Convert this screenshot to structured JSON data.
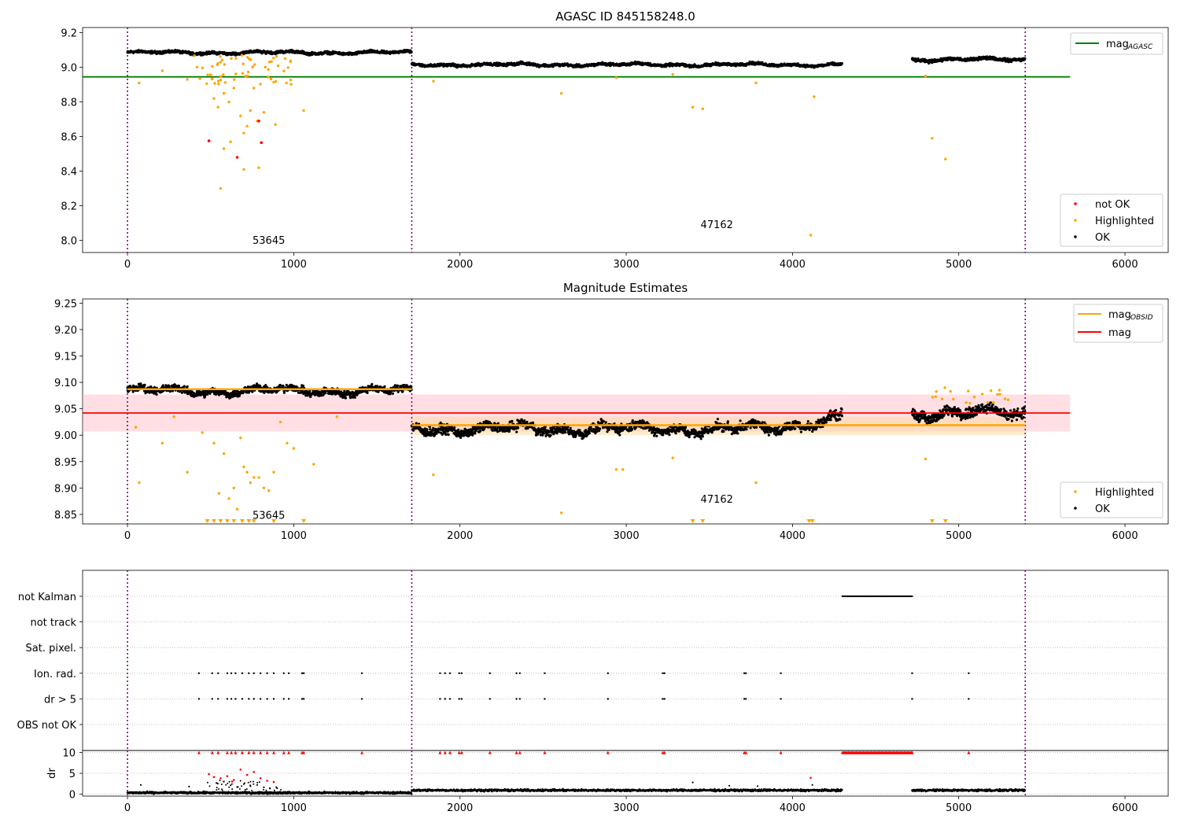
{
  "chart_data": [
    {
      "type": "scatter",
      "title": "AGASC ID 845158248.0",
      "xlim": [
        -270,
        6260
      ],
      "ylim": [
        7.93,
        9.23
      ],
      "xticks": [
        0,
        1000,
        2000,
        3000,
        4000,
        5000,
        6000
      ],
      "yticks": [
        8.0,
        8.2,
        8.4,
        8.6,
        8.8,
        9.0,
        9.2
      ],
      "ytick_labels": [
        "8.0",
        "8.2",
        "8.4",
        "8.6",
        "8.8",
        "9.0",
        "9.2"
      ],
      "vlines": [
        0,
        1710,
        5400
      ],
      "series": [
        {
          "name": "not OK",
          "color": "#ff0000",
          "points": [
            [
              490,
              8.575
            ],
            [
              660,
              8.48
            ],
            [
              790,
              8.69
            ],
            [
              805,
              8.565
            ]
          ]
        },
        {
          "name": "Highlighted",
          "color": "#ffa500"
        },
        {
          "name": "OK",
          "color": "#000000"
        }
      ],
      "line": {
        "name": "mag",
        "sub": "AGASC",
        "value": 8.945,
        "x": [
          -270,
          5670
        ],
        "color": "#008000"
      },
      "obsids": [
        {
          "label": "53645",
          "x": 850,
          "y": 7.98
        },
        {
          "label": "47162",
          "x": 3545,
          "y": 8.07
        }
      ],
      "segments": [
        {
          "x0": 0,
          "x1": 1710,
          "mean": 9.085,
          "amp": 0.012
        },
        {
          "x0": 1710,
          "x1": 4300,
          "mean": 9.015,
          "amp": 0.012
        },
        {
          "x0": 4720,
          "x1": 5400,
          "mean": 9.045,
          "amp": 0.014
        }
      ],
      "highlighted_outliers": [
        [
          70,
          8.91
        ],
        [
          210,
          8.98
        ],
        [
          360,
          8.93
        ],
        [
          520,
          8.82
        ],
        [
          545,
          8.77
        ],
        [
          580,
          8.85
        ],
        [
          610,
          8.8
        ],
        [
          640,
          8.88
        ],
        [
          680,
          8.72
        ],
        [
          700,
          8.62
        ],
        [
          720,
          8.66
        ],
        [
          740,
          8.75
        ],
        [
          760,
          8.88
        ],
        [
          780,
          8.69
        ],
        [
          820,
          8.74
        ],
        [
          890,
          8.67
        ],
        [
          1060,
          8.75
        ],
        [
          580,
          8.53
        ],
        [
          560,
          8.3
        ],
        [
          620,
          8.57
        ],
        [
          700,
          8.41
        ],
        [
          790,
          8.42
        ],
        [
          1840,
          8.92
        ],
        [
          2610,
          8.85
        ],
        [
          3400,
          8.77
        ],
        [
          3460,
          8.76
        ],
        [
          3780,
          8.91
        ],
        [
          4130,
          8.83
        ],
        [
          4110,
          8.03
        ],
        [
          4840,
          8.59
        ],
        [
          4920,
          8.47
        ],
        [
          4800,
          8.95
        ],
        [
          2940,
          8.94
        ],
        [
          3280,
          8.96
        ]
      ],
      "legend": [
        {
          "label": "not OK",
          "color": "#ff0000"
        },
        {
          "label": "Highlighted",
          "color": "#ffa500"
        },
        {
          "label": "OK",
          "color": "#000000"
        }
      ],
      "line_legend": {
        "label": "mag",
        "sub": "AGASC",
        "color": "#008000"
      }
    },
    {
      "type": "scatter",
      "title": "Magnitude Estimates",
      "xlim": [
        -270,
        6260
      ],
      "ylim": [
        8.832,
        9.258
      ],
      "xticks": [
        0,
        1000,
        2000,
        3000,
        4000,
        5000,
        6000
      ],
      "yticks": [
        8.85,
        8.9,
        8.95,
        9.0,
        9.05,
        9.1,
        9.15,
        9.2,
        9.25
      ],
      "ytick_labels": [
        "8.85",
        "8.90",
        "8.95",
        "9.00",
        "9.05",
        "9.10",
        "9.15",
        "9.20",
        "9.25"
      ],
      "vlines": [
        0,
        1710,
        5400
      ],
      "mag": {
        "name": "mag",
        "value": 9.042,
        "band": [
          9.007,
          9.077
        ],
        "x": [
          -270,
          5670
        ],
        "color": "#ff0000"
      },
      "mag_obsid": [
        {
          "x0": 0,
          "x1": 1710,
          "value": 9.087
        },
        {
          "x0": 1710,
          "x1": 5400,
          "value": 9.019
        }
      ],
      "obsid_band": {
        "x0": 1710,
        "x1": 5400,
        "lo": 9.0,
        "hi": 9.035
      },
      "obsids": [
        {
          "label": "53645",
          "x": 850,
          "y": 8.842
        },
        {
          "label": "47162",
          "x": 3545,
          "y": 8.872
        }
      ],
      "highlighted_outliers": [
        [
          50,
          9.015
        ],
        [
          70,
          8.91
        ],
        [
          210,
          8.985
        ],
        [
          280,
          9.035
        ],
        [
          360,
          8.93
        ],
        [
          450,
          9.005
        ],
        [
          520,
          8.985
        ],
        [
          550,
          8.89
        ],
        [
          580,
          8.965
        ],
        [
          610,
          8.88
        ],
        [
          640,
          8.9
        ],
        [
          660,
          8.86
        ],
        [
          680,
          8.995
        ],
        [
          700,
          8.94
        ],
        [
          720,
          8.93
        ],
        [
          740,
          8.91
        ],
        [
          760,
          8.92
        ],
        [
          790,
          8.92
        ],
        [
          820,
          8.9
        ],
        [
          850,
          8.895
        ],
        [
          880,
          8.93
        ],
        [
          920,
          9.025
        ],
        [
          960,
          8.985
        ],
        [
          1000,
          8.975
        ],
        [
          1120,
          8.945
        ],
        [
          1260,
          9.035
        ],
        [
          1840,
          8.925
        ],
        [
          2610,
          8.853
        ],
        [
          2940,
          8.935
        ],
        [
          2980,
          8.935
        ],
        [
          3280,
          8.957
        ],
        [
          3780,
          8.91
        ],
        [
          4800,
          8.955
        ]
      ],
      "clipped": [
        480,
        520,
        560,
        600,
        640,
        690,
        730,
        760,
        880,
        1060,
        3400,
        3460,
        4100,
        4120,
        4840,
        4920
      ],
      "legend": [
        {
          "label": "Highlighted",
          "color": "#ffa500"
        },
        {
          "label": "OK",
          "color": "#000000"
        }
      ],
      "line_legend": [
        {
          "label": "mag",
          "sub": "OBSID",
          "color": "#ffa500"
        },
        {
          "label": "mag",
          "sub": "",
          "color": "#ff0000"
        }
      ]
    },
    {
      "type": "scatter",
      "title": "",
      "xlim": [
        -270,
        6260
      ],
      "xticks": [
        0,
        1000,
        2000,
        3000,
        4000,
        5000,
        6000
      ],
      "vlines": [
        0,
        1710,
        5400
      ],
      "flag_rows": [
        "not Kalman",
        "not track",
        "Sat. pixel.",
        "Ion. rad.",
        "dr > 5",
        "OBS not OK"
      ],
      "event_x": [
        430,
        510,
        545,
        600,
        625,
        650,
        690,
        730,
        760,
        800,
        840,
        880,
        940,
        970,
        1050,
        1060,
        1410,
        1880,
        1910,
        1940,
        1995,
        2010,
        2180,
        2340,
        2360,
        2510,
        2890,
        3220,
        3230,
        3710,
        3720,
        3930,
        4720,
        5060
      ],
      "not_kalman_range": [
        4300,
        4720
      ],
      "dr": {
        "ylabel": "dr",
        "ylim": [
          -0.5,
          10.5
        ],
        "yticks": [
          0,
          5,
          10
        ],
        "ytick_labels": [
          "0",
          "5",
          "10"
        ],
        "clip_value": 10,
        "red_points": [
          [
            490,
            4.8
          ],
          [
            520,
            4.1
          ],
          [
            560,
            3.8
          ],
          [
            600,
            4.3
          ],
          [
            640,
            3.4
          ],
          [
            680,
            5.9
          ],
          [
            720,
            4.6
          ],
          [
            760,
            5.3
          ],
          [
            800,
            3.8
          ],
          [
            840,
            3.2
          ],
          [
            880,
            2.9
          ],
          [
            630,
            3.0
          ],
          [
            4110,
            3.9
          ]
        ],
        "scatter_outliers": [
          [
            80,
            2.2
          ],
          [
            370,
            1.8
          ],
          [
            540,
            2.6
          ],
          [
            580,
            3.0
          ],
          [
            620,
            2.1
          ],
          [
            660,
            1.7
          ],
          [
            700,
            2.4
          ],
          [
            740,
            1.9
          ],
          [
            780,
            2.2
          ],
          [
            820,
            1.6
          ],
          [
            900,
            1.4
          ],
          [
            3400,
            2.8
          ],
          [
            3620,
            2.0
          ],
          [
            3790,
            1.9
          ],
          [
            4120,
            2.2
          ]
        ]
      }
    }
  ]
}
